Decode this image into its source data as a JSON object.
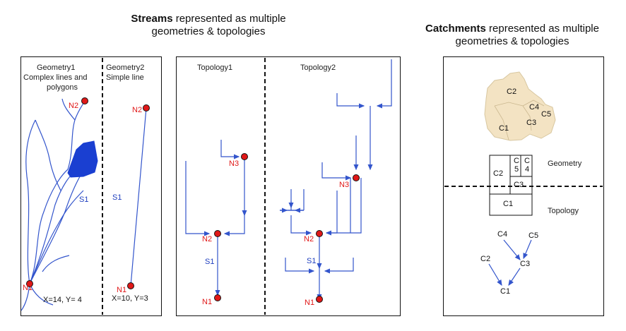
{
  "streams": {
    "title_bold": "Streams",
    "title_rest": " represented as multiple",
    "title_line2": "geometries & topologies",
    "geometry1": {
      "label": "Geometry1",
      "desc_line1": "Complex lines and",
      "desc_line2": "polygons",
      "n1": "N1",
      "n2": "N2",
      "s1": "S1",
      "coord": "X=14, Y= 4"
    },
    "geometry2": {
      "label": "Geometry2",
      "desc": "Simple line",
      "n1": "N1",
      "n2": "N2",
      "s1": "S1",
      "coord": "X=10, Y=3"
    },
    "topology1": {
      "label": "Topology1",
      "n1": "N1",
      "n2": "N2",
      "n3": "N3",
      "s1": "S1"
    },
    "topology2": {
      "label": "Topology2",
      "n1": "N1",
      "n2": "N2",
      "n3": "N3",
      "s1": "S1"
    }
  },
  "catchments": {
    "title_bold": "Catchments",
    "title_rest": " represented as multiple",
    "title_line2": "geometries & topologies",
    "map_labels": {
      "c1": "C1",
      "c2": "C2",
      "c3": "C3",
      "c4": "C4",
      "c5": "C5"
    },
    "grid_cells": {
      "c1": "C1",
      "c2": "C2",
      "c3": "C3",
      "c5": "C\n5",
      "c4": "C\n4"
    },
    "geometry_label": "Geometry",
    "topology_label": "Topology",
    "tree": {
      "c1": "C1",
      "c2": "C2",
      "c3": "C3",
      "c4": "C4",
      "c5": "C5"
    }
  },
  "colors": {
    "stream": "#3355cc",
    "node_fill": "#e01818",
    "catchment_fill": "#f3e3c3",
    "node_text": "#e01818"
  }
}
